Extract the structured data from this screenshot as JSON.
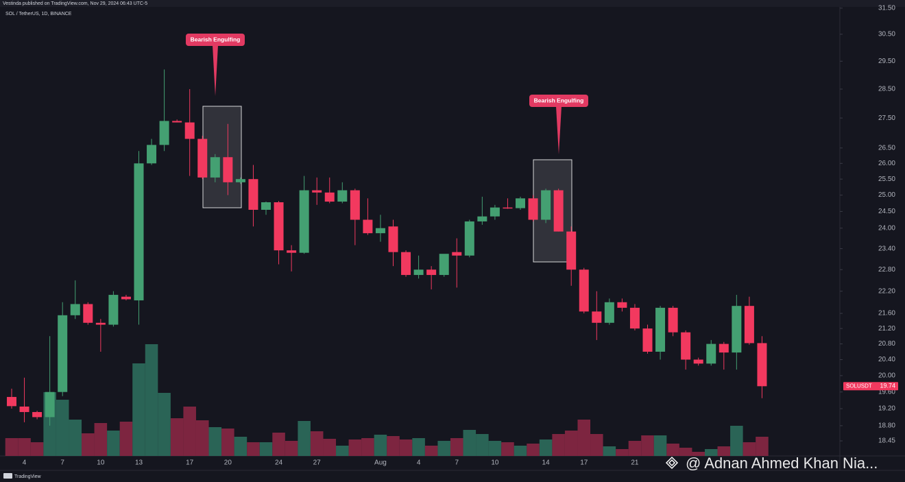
{
  "chart_data": {
    "type": "candlestick",
    "publisher": "Vestinda published on TradingView.com, Nov 29, 2024 06:43 UTC-5",
    "title": "SOL / TetherUS, 1D, BINANCE",
    "symbol": "SOLUSDT",
    "footer": "TradingView",
    "watermark": "@ Adnan Ahmed Khan Nia...",
    "annotations": [
      "Bearish Engulfing",
      "Bearish Engulfing"
    ],
    "log_scale": true,
    "up_color": "#44a072",
    "down_color": "#f2395f",
    "volume_up_color": "#2a6456",
    "volume_down_color": "#7d2540",
    "categories": [
      null,
      "4",
      null,
      null,
      "7",
      null,
      null,
      "10",
      null,
      null,
      "13",
      null,
      null,
      null,
      "17",
      null,
      null,
      "20",
      null,
      null,
      null,
      "24",
      null,
      null,
      "27",
      null,
      null,
      null,
      null,
      "Aug",
      null,
      null,
      "4",
      null,
      null,
      "7",
      null,
      null,
      "10",
      null,
      null,
      null,
      "14",
      null,
      null,
      "17",
      null,
      null,
      null,
      "21",
      null,
      null,
      null,
      null,
      null,
      null,
      null,
      null,
      null,
      null
    ],
    "open": [
      19.48,
      19.25,
      19.12,
      19.0,
      19.6,
      21.55,
      21.85,
      21.35,
      21.3,
      22.05,
      21.95,
      26.0,
      26.6,
      27.4,
      27.35,
      26.8,
      25.55,
      26.2,
      25.4,
      25.5,
      24.55,
      24.78,
      23.35,
      23.28,
      25.15,
      25.08,
      24.8,
      25.15,
      24.25,
      23.85,
      24.05,
      23.3,
      22.65,
      22.8,
      22.65,
      23.3,
      23.2,
      24.2,
      24.35,
      24.62,
      24.6,
      24.9,
      24.25,
      25.15,
      23.9,
      22.8,
      21.65,
      21.35,
      21.9,
      21.75,
      21.2,
      20.6,
      21.75,
      21.1,
      20.4,
      20.3,
      20.8,
      20.58,
      21.8,
      20.82
    ],
    "high": [
      19.68,
      19.95,
      19.15,
      21.0,
      21.9,
      22.5,
      21.9,
      21.45,
      22.2,
      22.1,
      26.4,
      26.8,
      29.2,
      27.45,
      28.5,
      26.9,
      26.3,
      27.3,
      25.55,
      25.95,
      24.8,
      24.82,
      23.5,
      25.6,
      25.55,
      25.55,
      25.4,
      25.2,
      24.9,
      24.4,
      24.25,
      23.35,
      23.2,
      22.9,
      23.2,
      23.7,
      24.25,
      24.95,
      24.7,
      24.9,
      24.95,
      25.0,
      25.2,
      25.2,
      24.05,
      22.85,
      22.2,
      22.0,
      22.0,
      21.85,
      21.3,
      21.8,
      21.8,
      21.15,
      20.45,
      20.9,
      20.85,
      22.1,
      22.05,
      21.0
    ],
    "low": [
      19.2,
      18.88,
      18.95,
      18.8,
      19.5,
      21.45,
      21.3,
      20.6,
      21.25,
      21.95,
      21.3,
      25.95,
      26.4,
      27.35,
      25.6,
      25.5,
      25.4,
      25.0,
      25.35,
      24.05,
      24.4,
      22.95,
      22.75,
      23.25,
      24.7,
      24.75,
      24.75,
      23.5,
      23.8,
      23.6,
      22.9,
      22.6,
      22.55,
      22.25,
      22.6,
      22.3,
      23.15,
      24.1,
      24.25,
      24.58,
      24.55,
      24.2,
      24.15,
      23.9,
      22.35,
      21.6,
      20.9,
      21.3,
      21.65,
      21.15,
      20.55,
      20.4,
      21.0,
      20.15,
      20.25,
      20.25,
      20.15,
      20.15,
      20.78,
      19.45
    ],
    "close": [
      19.26,
      19.12,
      19.0,
      19.6,
      21.55,
      21.85,
      21.35,
      21.3,
      22.1,
      21.98,
      26.0,
      26.6,
      27.4,
      27.35,
      26.8,
      25.55,
      26.2,
      25.4,
      25.5,
      24.55,
      24.78,
      23.35,
      23.28,
      25.15,
      25.08,
      24.8,
      25.15,
      24.25,
      23.85,
      24.0,
      23.3,
      22.65,
      22.8,
      22.65,
      23.25,
      23.2,
      24.2,
      24.35,
      24.62,
      24.6,
      24.9,
      24.25,
      25.15,
      23.9,
      22.8,
      21.65,
      21.35,
      21.9,
      21.75,
      21.2,
      20.6,
      21.75,
      21.1,
      20.4,
      20.3,
      20.8,
      20.58,
      21.8,
      20.82,
      19.74
    ],
    "volume": [
      26,
      26,
      20,
      93,
      82,
      53,
      33,
      48,
      37,
      50,
      135,
      163,
      92,
      55,
      72,
      52,
      42,
      40,
      28,
      20,
      20,
      34,
      22,
      51,
      36,
      25,
      15,
      24,
      26,
      31,
      29,
      24,
      26,
      15,
      22,
      26,
      38,
      32,
      22,
      20,
      15,
      18,
      24,
      32,
      37,
      53,
      32,
      14,
      10,
      22,
      30,
      30,
      18,
      12,
      6,
      10,
      14,
      44,
      20,
      28
    ],
    "ylim": [
      18.11,
      31.55
    ],
    "vlim": [
      0,
      200
    ],
    "yticks": [
      {
        "value": 31.5,
        "label": "31.50"
      },
      {
        "value": 30.5,
        "label": "30.50"
      },
      {
        "value": 29.5,
        "label": "29.50"
      },
      {
        "value": 28.5,
        "label": "28.50"
      },
      {
        "value": 27.5,
        "label": "27.50"
      },
      {
        "value": 26.5,
        "label": "26.50"
      },
      {
        "value": 26,
        "label": "26.00"
      },
      {
        "value": 25.5,
        "label": "25.50"
      },
      {
        "value": 25,
        "label": "25.00"
      },
      {
        "value": 24.5,
        "label": "24.50"
      },
      {
        "value": 24,
        "label": "24.00"
      },
      {
        "value": 23.4,
        "label": "23.40"
      },
      {
        "value": 22.8,
        "label": "22.80"
      },
      {
        "value": 22.2,
        "label": "22.20"
      },
      {
        "value": 21.6,
        "label": "21.60"
      },
      {
        "value": 21.2,
        "label": "21.20"
      },
      {
        "value": 20.8,
        "label": "20.80"
      },
      {
        "value": 20.4,
        "label": "20.40"
      },
      {
        "value": 20,
        "label": "20.00"
      },
      {
        "value": 19.6,
        "label": "19.60"
      },
      {
        "value": 19.2,
        "label": "19.20"
      },
      {
        "value": 18.8,
        "label": "18.80"
      },
      18.45
    ]
  }
}
